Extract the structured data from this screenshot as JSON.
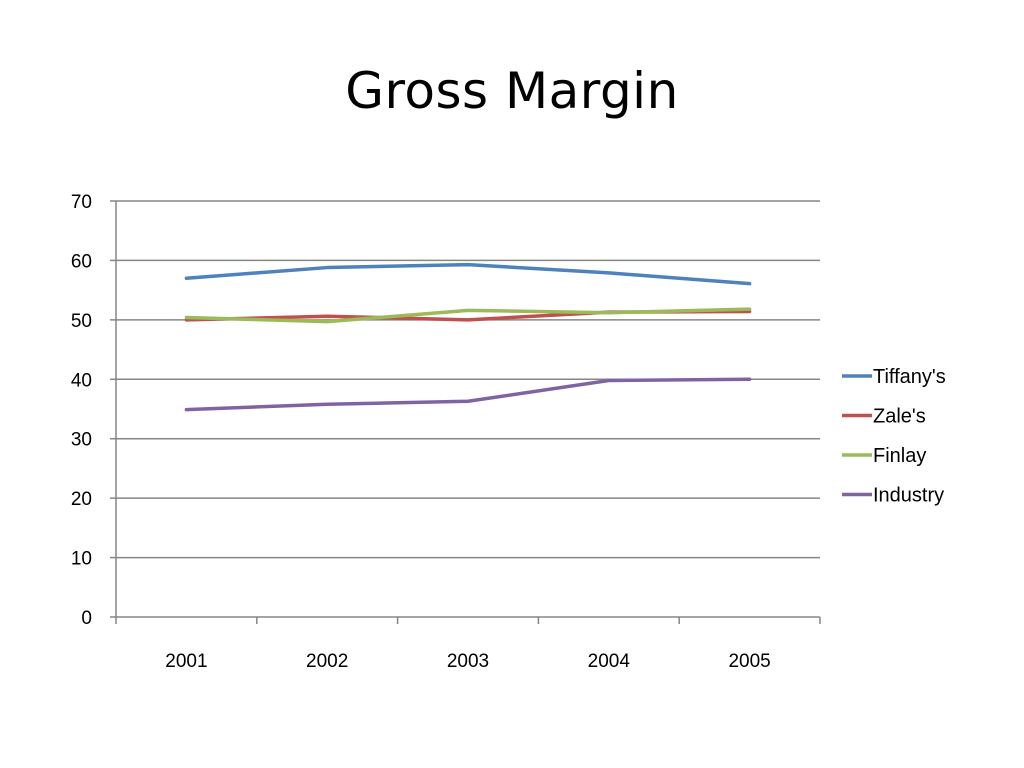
{
  "chart_data": {
    "type": "line",
    "title": "Gross Margin",
    "xlabel": "",
    "ylabel": "",
    "x": [
      "2001",
      "2002",
      "2003",
      "2004",
      "2005"
    ],
    "ylim": [
      0,
      70
    ],
    "yticks": [
      "0",
      "10",
      "20",
      "30",
      "40",
      "50",
      "60",
      "70"
    ],
    "grid": true,
    "legend_position": "right",
    "series": [
      {
        "name": "Tiffany's",
        "color": "#4f81bd",
        "values": [
          57.0,
          58.8,
          59.3,
          57.9,
          56.1
        ]
      },
      {
        "name": "Zale's",
        "color": "#c0504d",
        "values": [
          50.0,
          50.6,
          50.0,
          51.3,
          51.4
        ]
      },
      {
        "name": "Finlay",
        "color": "#9bbb59",
        "values": [
          50.4,
          49.7,
          51.6,
          51.2,
          51.8
        ]
      },
      {
        "name": "Industry",
        "color": "#8064a2",
        "values": [
          34.9,
          35.8,
          36.3,
          39.8,
          40.0
        ]
      }
    ]
  }
}
